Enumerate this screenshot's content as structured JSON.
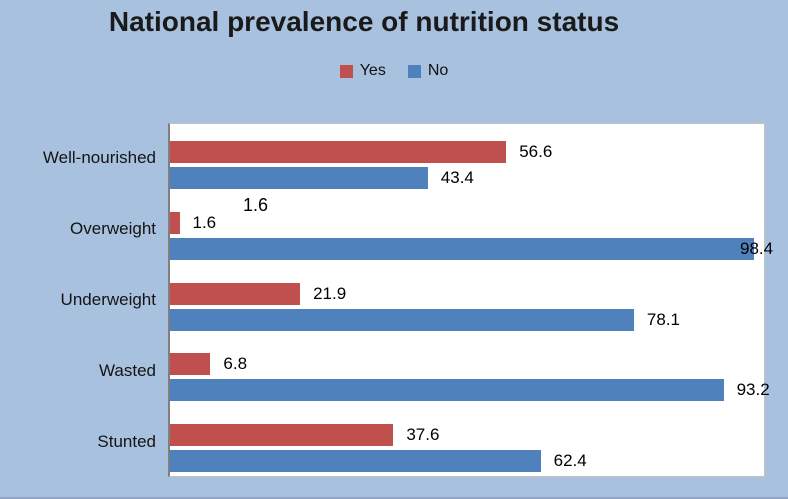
{
  "slide": {
    "background": "#a8c1df"
  },
  "chart_data": {
    "type": "bar",
    "orientation": "horizontal",
    "title": "National prevalence of nutrition status",
    "categories": [
      "Well-nourished",
      "Overweight",
      "Underweight",
      "Wasted",
      "Stunted"
    ],
    "series": [
      {
        "name": "Yes",
        "color": "#c0504d",
        "values": [
          56.6,
          1.6,
          21.9,
          6.8,
          37.6
        ]
      },
      {
        "name": "No",
        "color": "#4f81bd",
        "values": [
          43.4,
          98.4,
          78.1,
          93.2,
          62.4
        ]
      }
    ],
    "xlim": [
      0,
      100
    ],
    "grid": false,
    "legend_position": "top-center",
    "data_labels": "outside-end",
    "annotations": [
      {
        "text": "1.6",
        "description": "duplicate data label floating above the Overweight Yes bar"
      }
    ]
  },
  "colors": {
    "title_text": "#1a1a1a",
    "label_text": "#000000",
    "plot_background": "#ffffff",
    "axis_line": "#7f7f7f",
    "plot_border": "#c3c3c3"
  }
}
